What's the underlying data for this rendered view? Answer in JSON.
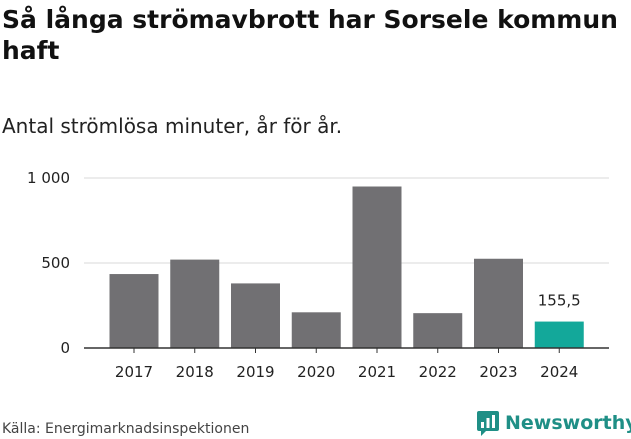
{
  "header": {
    "title": "Så långa strömavbrott har Sorsele kommun haft",
    "subtitle": "Antal strömlösa minuter, år för år."
  },
  "footer": {
    "source": "Källa: Energimarknadsinspektionen",
    "brand": "Newsworthy"
  },
  "colors": {
    "bar_default": "#717073",
    "bar_highlight": "#13a89a",
    "gridline": "#d9d9d9",
    "baseline": "#333333",
    "brand": "#1f8f86"
  },
  "chart_data": {
    "type": "bar",
    "categories": [
      "2017",
      "2018",
      "2019",
      "2020",
      "2021",
      "2022",
      "2023",
      "2024"
    ],
    "values": [
      435,
      520,
      380,
      210,
      950,
      205,
      525,
      155.5
    ],
    "highlight_index": 7,
    "data_labels": [
      {
        "index": 7,
        "text": "155,5"
      }
    ],
    "ylim": [
      0,
      1000
    ],
    "yticks": [
      {
        "value": 0,
        "label": "0"
      },
      {
        "value": 500,
        "label": "500"
      },
      {
        "value": 1000,
        "label": "1 000"
      }
    ],
    "grid": true
  }
}
